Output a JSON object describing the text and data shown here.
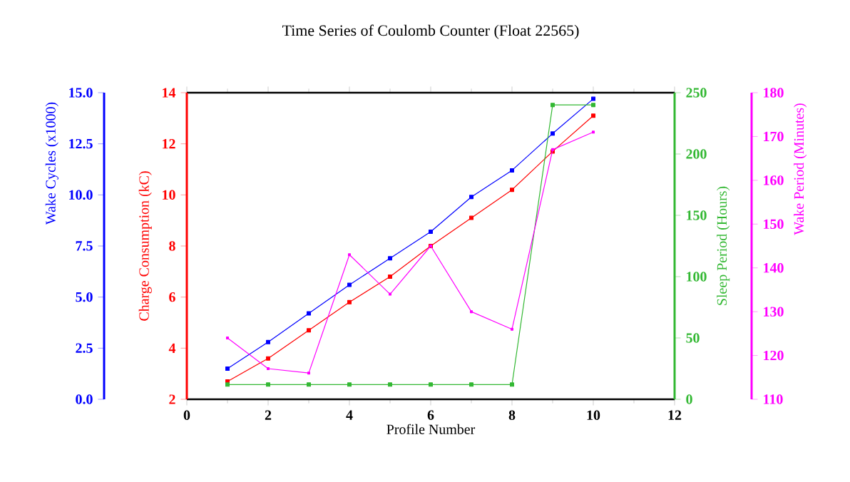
{
  "chart_data": [
    {
      "type": "line",
      "title": "Time Series of Coulomb Counter (Float 22565)",
      "xlabel": "Profile Number",
      "xlim": [
        0,
        12
      ],
      "xticks": [
        0,
        2,
        4,
        6,
        8,
        10,
        12
      ],
      "x": [
        1,
        2,
        3,
        4,
        5,
        6,
        7,
        8,
        9,
        10
      ],
      "ylabel": "Wake Cycles (x1000)",
      "ylim": [
        0,
        15
      ],
      "yticks": [
        {
          "value": 0,
          "label": "0.0"
        },
        2.5,
        {
          "value": 5,
          "label": "5.0"
        },
        7.5,
        {
          "value": 10,
          "label": "10.0"
        },
        12.5,
        {
          "value": 15,
          "label": "15.0"
        }
      ],
      "y2label": "Charge Consumption (kC)",
      "y2lim": [
        2,
        14
      ],
      "y2ticks": [
        2,
        4,
        6,
        8,
        10,
        12,
        14
      ],
      "y3label": "Sleep Period (Hours)",
      "y3lim": [
        0,
        250
      ],
      "y3ticks": [
        0,
        50,
        100,
        150,
        200,
        250
      ],
      "marker": "square",
      "line_style": "solid",
      "series": [
        {
          "color": "#0000ff",
          "values": [
            1.5,
            2.8,
            4.2,
            5.6,
            6.9,
            8.2,
            9.9,
            11.2,
            13.0,
            14.7
          ]
        },
        {
          "color": "#ff0000",
          "axis": "y2",
          "values": [
            2.7,
            3.6,
            4.7,
            5.8,
            6.8,
            8.0,
            9.1,
            10.2,
            11.7,
            13.1
          ]
        },
        {
          "color": "#33b833",
          "axis": "y3",
          "values": [
            12,
            12,
            12,
            12,
            12,
            12,
            12,
            12,
            240,
            240
          ]
        }
      ]
    },
    {
      "type": "line",
      "xlim": [
        0,
        12
      ],
      "x": [
        1,
        2,
        3,
        4,
        5,
        6,
        7,
        8,
        9,
        10
      ],
      "tick_labels": "y",
      "ylabel": "Wake Period (Minutes)",
      "ylim": [
        110,
        180
      ],
      "yticks": [
        110,
        120,
        130,
        140,
        150,
        160,
        170,
        180
      ],
      "marker": "square",
      "line_style": "solid",
      "series": [
        {
          "color": "#ff00ff",
          "values": [
            124,
            117,
            116,
            143,
            134,
            145,
            130,
            126,
            167,
            171
          ]
        }
      ]
    }
  ]
}
